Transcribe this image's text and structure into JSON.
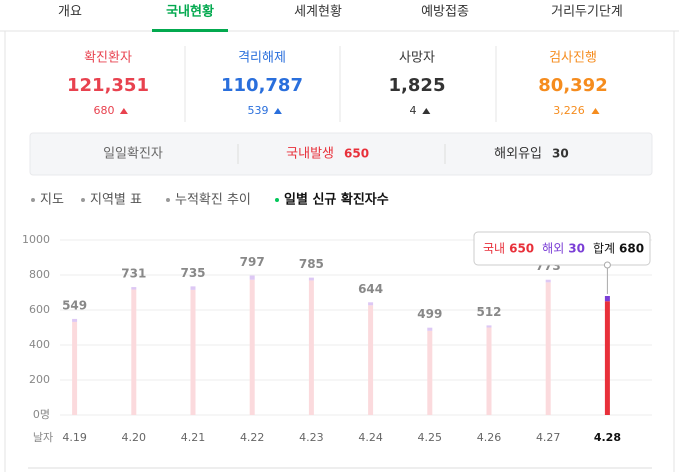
{
  "tabs": [
    "개요",
    "국내현황",
    "세계현황",
    "예방접종",
    "거리두기단계"
  ],
  "active_tab": 1,
  "stats": [
    {
      "label": "확진환자",
      "value": "121,351",
      "delta": "680",
      "color": "#e8424f"
    },
    {
      "label": "격리해제",
      "value": "110,787",
      "delta": "539",
      "color": "#2a6fdc"
    },
    {
      "label": "사망자",
      "value": "1,825",
      "delta": "4",
      "color": "#333333"
    },
    {
      "label": "검사진행",
      "value": "80,392",
      "delta": "3,226",
      "color": "#f58c1e"
    }
  ],
  "subtabs": [
    {
      "label": "일일확진자"
    },
    {
      "label": "국내발생",
      "value": "650"
    },
    {
      "label": "해외유입",
      "value": "30"
    }
  ],
  "options": [
    "지도",
    "지역별 표",
    "누적확진 추이",
    "일별 신규 확진자수"
  ],
  "chart_data": {
    "type": "bar",
    "stacked": true,
    "x_label": "날자",
    "categories": [
      "4.19",
      "4.20",
      "4.21",
      "4.22",
      "4.23",
      "4.24",
      "4.25",
      "4.26",
      "4.27",
      "4.28"
    ],
    "series": [
      {
        "name": "국내",
        "color": "#fbdadd",
        "values": [
          532,
          717,
          715,
          773,
          769,
          627,
          481,
          500,
          758,
          650
        ]
      },
      {
        "name": "해외",
        "color": "#ddc8f4",
        "values": [
          17,
          14,
          20,
          24,
          16,
          17,
          18,
          12,
          15,
          30
        ]
      }
    ],
    "total_label": "합계",
    "totals": [
      549,
      731,
      735,
      797,
      785,
      644,
      499,
      512,
      773,
      680
    ],
    "selected": 9,
    "selected_colors": [
      "#e8303a",
      "#7b3fd6"
    ],
    "ylim": [
      0,
      1000
    ],
    "yticks": [
      {
        "value": 0,
        "label": "0명"
      },
      200,
      400,
      600,
      800,
      1000
    ],
    "grid": true
  }
}
